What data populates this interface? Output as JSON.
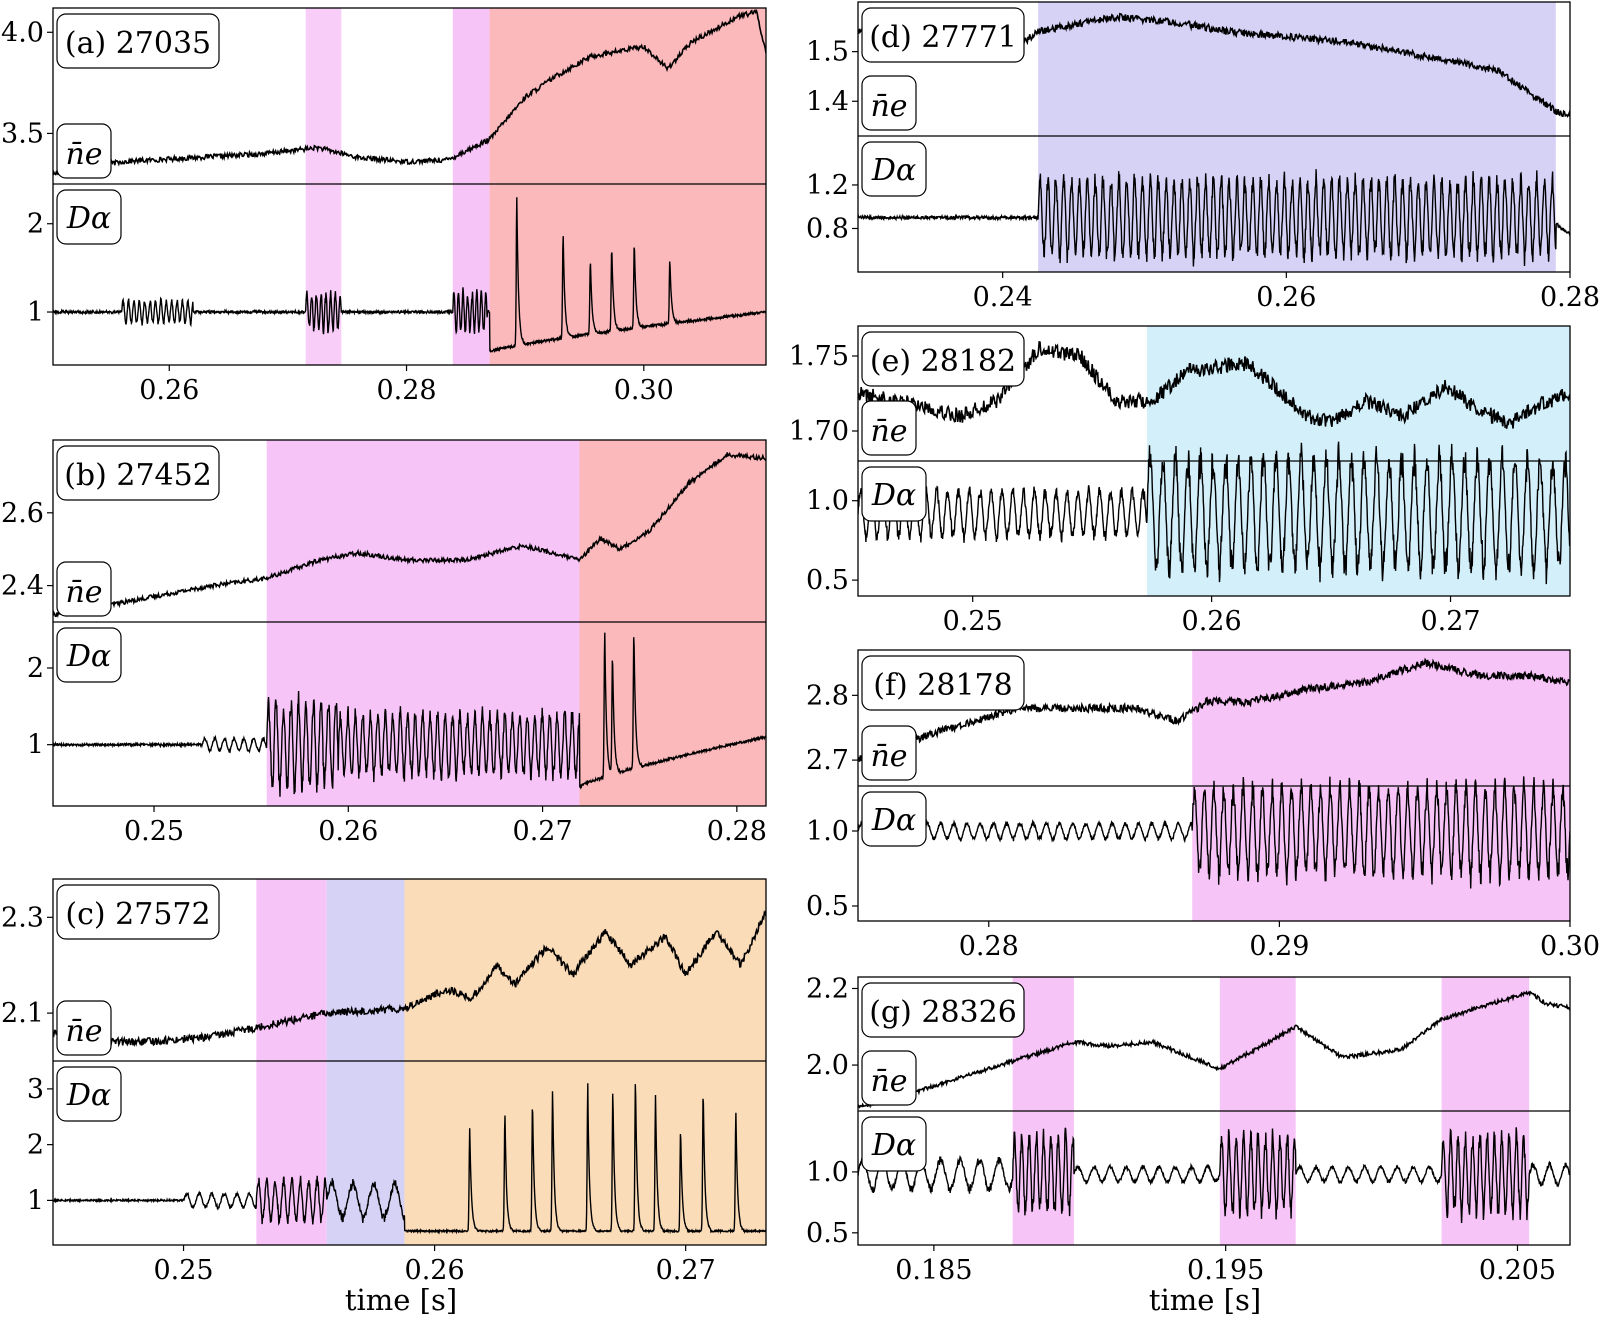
{
  "figure": {
    "xlabel_left": "time [s]",
    "xlabel_right": "time [s]"
  },
  "colors": {
    "pink": "#f8cdf8",
    "magenta": "#f7c4f7",
    "red": "#fbb9bb",
    "lavender": "#d6d2f6",
    "cyan": "#d2effa",
    "orange": "#fbdcb9",
    "trace": "#000000"
  },
  "chart_data": [
    {
      "id": "a",
      "type": "line",
      "label": "(a) 27035",
      "top_label": "n̄e",
      "bottom_label": "Dα",
      "xlim": [
        0.2502,
        0.3103
      ],
      "xticks": [
        0.26,
        0.28,
        0.3
      ],
      "xtick_labels": [
        "0.26",
        "0.28",
        "0.30"
      ],
      "top_ylim": [
        3.25,
        4.12
      ],
      "top_yticks": [
        3.5,
        4.0
      ],
      "top_ytick_labels": [
        "3.5",
        "4.0"
      ],
      "bottom_ylim": [
        0.4,
        2.45
      ],
      "bottom_yticks": [
        1,
        2
      ],
      "bottom_ytick_labels": [
        "1",
        "2"
      ],
      "regions": [
        {
          "x0": 0.2715,
          "x1": 0.2745,
          "color": "pink"
        },
        {
          "x0": 0.2839,
          "x1": 0.287,
          "color": "magenta"
        },
        {
          "x0": 0.287,
          "x1": 0.3103,
          "color": "red"
        }
      ],
      "ne_points": [
        [
          0.2502,
          3.3
        ],
        [
          0.252,
          3.32
        ],
        [
          0.256,
          3.36
        ],
        [
          0.262,
          3.38
        ],
        [
          0.268,
          3.4
        ],
        [
          0.2725,
          3.43
        ],
        [
          0.276,
          3.38
        ],
        [
          0.28,
          3.36
        ],
        [
          0.2835,
          3.37
        ],
        [
          0.287,
          3.47
        ],
        [
          0.29,
          3.68
        ],
        [
          0.2925,
          3.78
        ],
        [
          0.2955,
          3.88
        ],
        [
          0.3,
          3.93
        ],
        [
          0.302,
          3.82
        ],
        [
          0.304,
          3.95
        ],
        [
          0.308,
          4.08
        ],
        [
          0.3095,
          4.1
        ],
        [
          0.3103,
          3.9
        ]
      ],
      "ne_noise": 0.012,
      "da_base": 1.0,
      "da_segments": [
        {
          "x0": 0.256,
          "x1": 0.262,
          "amp": 0.12,
          "freq": 2200
        },
        {
          "x0": 0.2715,
          "x1": 0.2745,
          "amp": 0.2,
          "freq": 2500
        },
        {
          "x0": 0.2839,
          "x1": 0.2868,
          "amp": 0.22,
          "freq": 2600
        }
      ],
      "da_after": {
        "x0": 0.287,
        "start": 0.55,
        "end": 1.0
      },
      "da_spikes": [
        0.2893,
        0.2932,
        0.2955,
        0.2973,
        0.2992,
        0.3022
      ],
      "da_spike_heights": [
        2.3,
        1.9,
        1.6,
        1.75,
        1.8,
        1.6
      ]
    },
    {
      "id": "b",
      "type": "line",
      "label": "(b) 27452",
      "top_label": "n̄e",
      "bottom_label": "Dα",
      "xlim": [
        0.2448,
        0.2815
      ],
      "xticks": [
        0.25,
        0.26,
        0.27,
        0.28
      ],
      "xtick_labels": [
        "0.25",
        "0.26",
        "0.27",
        "0.28"
      ],
      "top_ylim": [
        2.3,
        2.8
      ],
      "top_yticks": [
        2.4,
        2.6
      ],
      "top_ytick_labels": [
        "2.4",
        "2.6"
      ],
      "bottom_ylim": [
        0.2,
        2.6
      ],
      "bottom_yticks": [
        1,
        2
      ],
      "bottom_ytick_labels": [
        "1",
        "2"
      ],
      "regions": [
        {
          "x0": 0.2558,
          "x1": 0.2719,
          "color": "magenta"
        },
        {
          "x0": 0.2719,
          "x1": 0.2815,
          "color": "red"
        }
      ],
      "ne_points": [
        [
          0.2448,
          2.32
        ],
        [
          0.247,
          2.34
        ],
        [
          0.25,
          2.37
        ],
        [
          0.253,
          2.4
        ],
        [
          0.2558,
          2.42
        ],
        [
          0.2585,
          2.47
        ],
        [
          0.2605,
          2.49
        ],
        [
          0.263,
          2.47
        ],
        [
          0.266,
          2.47
        ],
        [
          0.269,
          2.51
        ],
        [
          0.2719,
          2.47
        ],
        [
          0.273,
          2.53
        ],
        [
          0.274,
          2.5
        ],
        [
          0.2755,
          2.55
        ],
        [
          0.2775,
          2.68
        ],
        [
          0.2795,
          2.76
        ],
        [
          0.2815,
          2.75
        ]
      ],
      "ne_noise": 0.006,
      "da_base": 1.0,
      "da_segments": [
        {
          "x0": 0.2525,
          "x1": 0.2558,
          "amp": 0.08,
          "freq": 2000
        },
        {
          "x0": 0.2558,
          "x1": 0.2595,
          "amp": 0.55,
          "freq": 2600
        },
        {
          "x0": 0.2595,
          "x1": 0.2719,
          "amp": 0.38,
          "freq": 2600
        }
      ],
      "da_after": {
        "x0": 0.2719,
        "start": 0.45,
        "end": 1.1
      },
      "da_spikes": [
        0.2732,
        0.2736,
        0.2747
      ],
      "da_spike_heights": [
        2.5,
        2.2,
        2.5
      ]
    },
    {
      "id": "c",
      "type": "line",
      "label": "(c) 27572",
      "top_label": "n̄e",
      "bottom_label": "Dα",
      "xlim": [
        0.2448,
        0.2732
      ],
      "xticks": [
        0.25,
        0.26,
        0.27
      ],
      "xtick_labels": [
        "0.25",
        "0.26",
        "0.27"
      ],
      "top_ylim": [
        2.0,
        2.38
      ],
      "top_yticks": [
        2.1,
        2.3
      ],
      "top_ytick_labels": [
        "2.1",
        "2.3"
      ],
      "bottom_ylim": [
        0.2,
        3.5
      ],
      "bottom_yticks": [
        1,
        2,
        3
      ],
      "bottom_ytick_labels": [
        "1",
        "2",
        "3"
      ],
      "regions": [
        {
          "x0": 0.2529,
          "x1": 0.2557,
          "color": "magenta"
        },
        {
          "x0": 0.2557,
          "x1": 0.2588,
          "color": "lavender"
        },
        {
          "x0": 0.2588,
          "x1": 0.2732,
          "color": "orange"
        }
      ],
      "ne_points": [
        [
          0.2448,
          2.06
        ],
        [
          0.2468,
          2.04
        ],
        [
          0.2485,
          2.04
        ],
        [
          0.251,
          2.05
        ],
        [
          0.2529,
          2.07
        ],
        [
          0.2557,
          2.1
        ],
        [
          0.2588,
          2.11
        ],
        [
          0.2605,
          2.15
        ],
        [
          0.2615,
          2.13
        ],
        [
          0.2625,
          2.2
        ],
        [
          0.2632,
          2.16
        ],
        [
          0.2645,
          2.24
        ],
        [
          0.2655,
          2.18
        ],
        [
          0.2668,
          2.27
        ],
        [
          0.2678,
          2.2
        ],
        [
          0.2692,
          2.26
        ],
        [
          0.27,
          2.18
        ],
        [
          0.2712,
          2.27
        ],
        [
          0.2722,
          2.2
        ],
        [
          0.2732,
          2.31
        ]
      ],
      "ne_noise": 0.008,
      "da_base": 1.0,
      "da_segments": [
        {
          "x0": 0.25,
          "x1": 0.2529,
          "amp": 0.12,
          "freq": 2000
        },
        {
          "x0": 0.2529,
          "x1": 0.2557,
          "amp": 0.35,
          "freq": 3000
        },
        {
          "x0": 0.2557,
          "x1": 0.2588,
          "amp": 0.3,
          "freq": 1200
        }
      ],
      "da_after": {
        "x0": 0.2588,
        "start": 0.45,
        "end": 0.45
      },
      "da_spikes": [
        0.2614,
        0.2628,
        0.2639,
        0.2647,
        0.2661,
        0.2671,
        0.268,
        0.2688,
        0.2698,
        0.2707,
        0.272
      ],
      "da_spike_heights": [
        2.3,
        2.6,
        2.8,
        3.0,
        3.1,
        3.0,
        3.2,
        2.9,
        2.3,
        3.0,
        2.6
      ]
    },
    {
      "id": "d",
      "type": "line",
      "label": "(d) 27771",
      "top_label": "n̄e",
      "bottom_label": "Dα",
      "xlim": [
        0.2298,
        0.28
      ],
      "xticks": [
        0.24,
        0.26,
        0.28
      ],
      "xtick_labels": [
        "0.24",
        "0.26",
        "0.28"
      ],
      "top_ylim": [
        1.33,
        1.6
      ],
      "top_yticks": [
        1.4,
        1.5
      ],
      "top_ytick_labels": [
        "1.4",
        "1.5"
      ],
      "bottom_ylim": [
        0.4,
        1.65
      ],
      "bottom_yticks": [
        0.8,
        1.2
      ],
      "bottom_ytick_labels": [
        "0.8",
        "1.2"
      ],
      "regions": [
        {
          "x0": 0.2425,
          "x1": 0.279,
          "color": "lavender"
        }
      ],
      "ne_points": [
        [
          0.2298,
          1.54
        ],
        [
          0.234,
          1.54
        ],
        [
          0.2385,
          1.53
        ],
        [
          0.241,
          1.51
        ],
        [
          0.2425,
          1.54
        ],
        [
          0.246,
          1.56
        ],
        [
          0.248,
          1.57
        ],
        [
          0.252,
          1.56
        ],
        [
          0.256,
          1.54
        ],
        [
          0.26,
          1.53
        ],
        [
          0.264,
          1.52
        ],
        [
          0.268,
          1.5
        ],
        [
          0.272,
          1.48
        ],
        [
          0.275,
          1.46
        ],
        [
          0.277,
          1.42
        ],
        [
          0.279,
          1.38
        ],
        [
          0.28,
          1.37
        ]
      ],
      "ne_noise": 0.007,
      "da_base": 0.9,
      "da_segments": [
        {
          "x0": 0.2425,
          "x1": 0.279,
          "amp": 0.34,
          "freq": 1800
        }
      ],
      "da_after": {
        "x0": 0.279,
        "start": 0.85,
        "end": 0.75
      },
      "da_spikes": [],
      "da_spike_heights": []
    },
    {
      "id": "e",
      "type": "line",
      "label": "(e) 28182",
      "top_label": "n̄e",
      "bottom_label": "Dα",
      "xlim": [
        0.2452,
        0.275
      ],
      "xticks": [
        0.25,
        0.26,
        0.27
      ],
      "xtick_labels": [
        "0.25",
        "0.26",
        "0.27"
      ],
      "top_ylim": [
        1.68,
        1.77
      ],
      "top_yticks": [
        1.7,
        1.75
      ],
      "top_ytick_labels": [
        "1.70",
        "1.75"
      ],
      "bottom_ylim": [
        0.4,
        1.25
      ],
      "bottom_yticks": [
        0.5,
        1.0
      ],
      "bottom_ytick_labels": [
        "0.5",
        "1.0"
      ],
      "regions": [
        {
          "x0": 0.2573,
          "x1": 0.275,
          "color": "cyan"
        }
      ],
      "ne_points": [
        [
          0.2452,
          1.725
        ],
        [
          0.247,
          1.72
        ],
        [
          0.2495,
          1.71
        ],
        [
          0.251,
          1.72
        ],
        [
          0.2528,
          1.755
        ],
        [
          0.2545,
          1.75
        ],
        [
          0.256,
          1.72
        ],
        [
          0.2575,
          1.72
        ],
        [
          0.259,
          1.74
        ],
        [
          0.2615,
          1.745
        ],
        [
          0.264,
          1.71
        ],
        [
          0.265,
          1.705
        ],
        [
          0.2665,
          1.72
        ],
        [
          0.268,
          1.71
        ],
        [
          0.2698,
          1.73
        ],
        [
          0.2712,
          1.714
        ],
        [
          0.2725,
          1.705
        ],
        [
          0.2738,
          1.718
        ],
        [
          0.275,
          1.725
        ]
      ],
      "ne_noise": 0.005,
      "da_base": 0.92,
      "da_segments": [
        {
          "x0": 0.2452,
          "x1": 0.2573,
          "amp": 0.14,
          "freq": 2200
        },
        {
          "x0": 0.2573,
          "x1": 0.275,
          "amp": 0.34,
          "freq": 1900
        }
      ],
      "da_after": null,
      "da_spikes": [],
      "da_spike_heights": []
    },
    {
      "id": "f",
      "type": "line",
      "label": "(f) 28178",
      "top_label": "n̄e",
      "bottom_label": "Dα",
      "xlim": [
        0.2755,
        0.3
      ],
      "xticks": [
        0.28,
        0.29,
        0.3
      ],
      "xtick_labels": [
        "0.28",
        "0.29",
        "0.30"
      ],
      "top_ylim": [
        2.66,
        2.87
      ],
      "top_yticks": [
        2.7,
        2.8
      ],
      "top_ytick_labels": [
        "2.7",
        "2.8"
      ],
      "bottom_ylim": [
        0.4,
        1.3
      ],
      "bottom_yticks": [
        0.5,
        1.0
      ],
      "bottom_ytick_labels": [
        "0.5",
        "1.0"
      ],
      "regions": [
        {
          "x0": 0.287,
          "x1": 0.3,
          "color": "magenta"
        }
      ],
      "ne_points": [
        [
          0.2755,
          2.7
        ],
        [
          0.278,
          2.74
        ],
        [
          0.281,
          2.78
        ],
        [
          0.283,
          2.78
        ],
        [
          0.285,
          2.78
        ],
        [
          0.2865,
          2.76
        ],
        [
          0.2875,
          2.79
        ],
        [
          0.289,
          2.79
        ],
        [
          0.291,
          2.81
        ],
        [
          0.293,
          2.82
        ],
        [
          0.295,
          2.85
        ],
        [
          0.297,
          2.83
        ],
        [
          0.2985,
          2.83
        ],
        [
          0.3,
          2.82
        ]
      ],
      "ne_noise": 0.006,
      "da_base": 1.0,
      "da_segments": [
        {
          "x0": 0.2755,
          "x1": 0.287,
          "amp": 0.05,
          "freq": 2200
        },
        {
          "x0": 0.287,
          "x1": 0.3,
          "amp": 0.28,
          "freq": 3000
        }
      ],
      "da_after": null,
      "da_spikes": [],
      "da_spike_heights": []
    },
    {
      "id": "g",
      "type": "line",
      "label": "(g) 28326",
      "top_label": "n̄e",
      "bottom_label": "Dα",
      "xlim": [
        0.1824,
        0.2068
      ],
      "xticks": [
        0.185,
        0.195,
        0.205
      ],
      "xtick_labels": [
        "0.185",
        "0.195",
        "0.205"
      ],
      "top_ylim": [
        1.88,
        2.23
      ],
      "top_yticks": [
        2.0,
        2.2
      ],
      "top_ytick_labels": [
        "2.0",
        "2.2"
      ],
      "bottom_ylim": [
        0.4,
        1.5
      ],
      "bottom_yticks": [
        0.5,
        1.0
      ],
      "bottom_ytick_labels": [
        "0.5",
        "1.0"
      ],
      "regions": [
        {
          "x0": 0.1877,
          "x1": 0.1898,
          "color": "magenta"
        },
        {
          "x0": 0.1948,
          "x1": 0.1974,
          "color": "magenta"
        },
        {
          "x0": 0.2024,
          "x1": 0.2054,
          "color": "magenta"
        }
      ],
      "ne_points": [
        [
          0.1824,
          1.89
        ],
        [
          0.184,
          1.92
        ],
        [
          0.186,
          1.97
        ],
        [
          0.1877,
          2.01
        ],
        [
          0.1898,
          2.06
        ],
        [
          0.191,
          2.05
        ],
        [
          0.1925,
          2.06
        ],
        [
          0.1948,
          1.99
        ],
        [
          0.196,
          2.04
        ],
        [
          0.1974,
          2.1
        ],
        [
          0.199,
          2.02
        ],
        [
          0.201,
          2.04
        ],
        [
          0.2024,
          2.12
        ],
        [
          0.2054,
          2.19
        ],
        [
          0.206,
          2.16
        ],
        [
          0.2068,
          2.15
        ]
      ],
      "ne_noise": 0.005,
      "da_base": 0.98,
      "da_segments": [
        {
          "x0": 0.1824,
          "x1": 0.1877,
          "amp": 0.12,
          "freq": 1500
        },
        {
          "x0": 0.1877,
          "x1": 0.1898,
          "amp": 0.3,
          "freq": 4000
        },
        {
          "x0": 0.1898,
          "x1": 0.1948,
          "amp": 0.06,
          "freq": 1800
        },
        {
          "x0": 0.1948,
          "x1": 0.1974,
          "amp": 0.3,
          "freq": 4000
        },
        {
          "x0": 0.1974,
          "x1": 0.2024,
          "amp": 0.06,
          "freq": 1800
        },
        {
          "x0": 0.2024,
          "x1": 0.2054,
          "amp": 0.3,
          "freq": 4000
        },
        {
          "x0": 0.2054,
          "x1": 0.2068,
          "amp": 0.08,
          "freq": 1800
        }
      ],
      "da_after": null,
      "da_spikes": [],
      "da_spike_heights": []
    }
  ]
}
